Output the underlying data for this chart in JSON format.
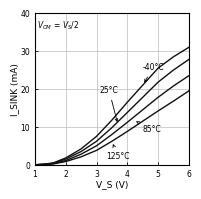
{
  "title_annotation": "V₁₂ = V₂/2",
  "title_annotation_plain": "V_CM = V_S/2",
  "xlabel": "V_S (V)",
  "ylabel": "I_SINK (mA)",
  "xlim": [
    1,
    6
  ],
  "ylim": [
    0,
    40
  ],
  "xticks": [
    1,
    2,
    3,
    4,
    5,
    6
  ],
  "yticks": [
    0,
    10,
    20,
    30,
    40
  ],
  "curves": [
    {
      "label": "-40°C",
      "color": "#111111",
      "x": [
        1.0,
        1.3,
        1.6,
        2.0,
        2.5,
        3.0,
        3.5,
        4.0,
        4.5,
        5.0,
        5.5,
        6.0
      ],
      "y": [
        0.0,
        0.15,
        0.5,
        1.8,
        4.2,
        7.5,
        11.8,
        16.5,
        21.0,
        25.5,
        28.5,
        31.0
      ]
    },
    {
      "label": "25°C",
      "color": "#111111",
      "x": [
        1.0,
        1.3,
        1.6,
        2.0,
        2.5,
        3.0,
        3.5,
        4.0,
        4.5,
        5.0,
        5.5,
        6.0
      ],
      "y": [
        0.0,
        0.12,
        0.4,
        1.5,
        3.5,
        6.2,
        9.8,
        13.8,
        17.8,
        21.8,
        25.0,
        27.8
      ]
    },
    {
      "label": "85°C",
      "color": "#111111",
      "x": [
        1.0,
        1.3,
        1.6,
        2.0,
        2.5,
        3.0,
        3.5,
        4.0,
        4.5,
        5.0,
        5.5,
        6.0
      ],
      "y": [
        0.0,
        0.09,
        0.3,
        1.1,
        2.8,
        5.0,
        8.0,
        11.2,
        14.5,
        17.8,
        20.8,
        23.5
      ]
    },
    {
      "label": "125°C",
      "color": "#111111",
      "x": [
        1.0,
        1.3,
        1.6,
        2.0,
        2.5,
        3.0,
        3.5,
        4.0,
        4.5,
        5.0,
        5.5,
        6.0
      ],
      "y": [
        0.0,
        0.07,
        0.22,
        0.85,
        2.1,
        3.8,
        6.2,
        8.8,
        11.5,
        14.2,
        16.8,
        19.5
      ]
    }
  ],
  "background_color": "#ffffff",
  "grid_color": "#bbbbbb",
  "linewidth": 1.0,
  "tick_fontsize": 5.5,
  "label_fontsize": 6.5,
  "annotation_fontsize": 5.5
}
